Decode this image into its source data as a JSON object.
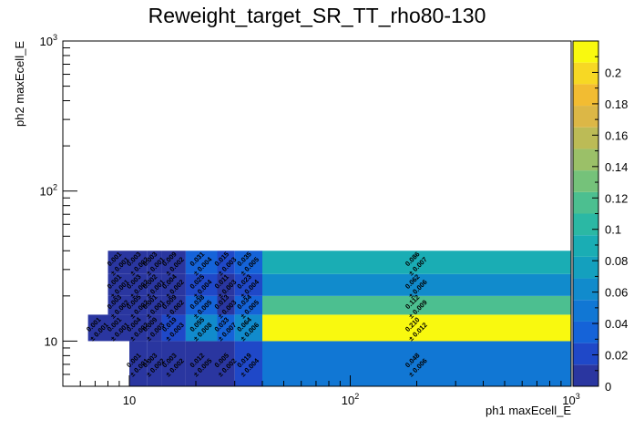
{
  "chart_data": {
    "type": "heatmap",
    "title": "Reweight_target_SR_TT_rho80-130",
    "xlabel": "ph1 maxEcell_E",
    "ylabel": "ph2 maxEcell_E",
    "x_scale": "log",
    "y_scale": "log",
    "xlim": [
      5,
      1000
    ],
    "ylim": [
      5,
      1000
    ],
    "x_tick_labels": [
      "10",
      "10^2",
      "10^3"
    ],
    "y_tick_labels": [
      "10",
      "10^2",
      "10^3"
    ],
    "zlim": [
      0,
      0.22
    ],
    "z_tick_labels": [
      "0",
      "0.02",
      "0.04",
      "0.06",
      "0.08",
      "0.1",
      "0.12",
      "0.14",
      "0.16",
      "0.18",
      "0.2"
    ],
    "x_edges": [
      6.5,
      8,
      10,
      12,
      14,
      18,
      25,
      30,
      40,
      1000
    ],
    "y_edges": [
      5,
      10,
      15,
      20,
      28,
      40,
      1000
    ],
    "cells": [
      {
        "xi": 2,
        "yi": 0,
        "value": 0.001,
        "label": "0.001"
      },
      {
        "xi": 3,
        "yi": 0,
        "value": 0.003,
        "label": "0.003"
      },
      {
        "xi": 4,
        "yi": 0,
        "value": 0.003,
        "label": "0.003"
      },
      {
        "xi": 5,
        "yi": 0,
        "value": 0.012,
        "label": "0.012"
      },
      {
        "xi": 6,
        "yi": 0,
        "value": 0.005,
        "label": "0.005"
      },
      {
        "xi": 7,
        "yi": 0,
        "value": 0.019,
        "label": "0.019"
      },
      {
        "xi": 8,
        "yi": 0,
        "value": 0.048,
        "label": "0.048"
      },
      {
        "xi": 0,
        "yi": 1,
        "value": 0.001,
        "label": "0.001"
      },
      {
        "xi": 1,
        "yi": 1,
        "value": 0.001,
        "label": "0.001"
      },
      {
        "xi": 2,
        "yi": 1,
        "value": 0.004,
        "label": "0.004"
      },
      {
        "xi": 3,
        "yi": 1,
        "value": 0.009,
        "label": "0.009"
      },
      {
        "xi": 4,
        "yi": 1,
        "value": 0.019,
        "label": "0.019"
      },
      {
        "xi": 5,
        "yi": 1,
        "value": 0.055,
        "label": "0.055"
      },
      {
        "xi": 6,
        "yi": 1,
        "value": 0.033,
        "label": "0.033"
      },
      {
        "xi": 7,
        "yi": 1,
        "value": 0.064,
        "label": "0.064"
      },
      {
        "xi": 8,
        "yi": 1,
        "value": 0.21,
        "label": "0.210"
      },
      {
        "xi": 1,
        "yi": 2,
        "value": 0.003,
        "label": "0.003"
      },
      {
        "xi": 2,
        "yi": 2,
        "value": 0.005,
        "label": "0.005"
      },
      {
        "xi": 3,
        "yi": 2,
        "value": 0.001,
        "label": "0.001"
      },
      {
        "xi": 4,
        "yi": 2,
        "value": 0.009,
        "label": "0.009"
      },
      {
        "xi": 5,
        "yi": 2,
        "value": 0.038,
        "label": "0.038"
      },
      {
        "xi": 6,
        "yi": 2,
        "value": 0.013,
        "label": "0.013"
      },
      {
        "xi": 7,
        "yi": 2,
        "value": 0.034,
        "label": "0.034"
      },
      {
        "xi": 8,
        "yi": 2,
        "value": 0.112,
        "label": "0.112"
      },
      {
        "xi": 1,
        "yi": 3,
        "value": 0.001,
        "label": "0.001"
      },
      {
        "xi": 2,
        "yi": 3,
        "value": 0.003,
        "label": "0.003"
      },
      {
        "xi": 3,
        "yi": 3,
        "value": 0.002,
        "label": "0.002"
      },
      {
        "xi": 4,
        "yi": 3,
        "value": 0.004,
        "label": "0.004"
      },
      {
        "xi": 5,
        "yi": 3,
        "value": 0.025,
        "label": "0.025"
      },
      {
        "xi": 6,
        "yi": 3,
        "value": 0.011,
        "label": "0.011"
      },
      {
        "xi": 7,
        "yi": 3,
        "value": 0.023,
        "label": "0.023"
      },
      {
        "xi": 8,
        "yi": 3,
        "value": 0.062,
        "label": "0.062"
      },
      {
        "xi": 1,
        "yi": 4,
        "value": 0.001,
        "label": "0.001"
      },
      {
        "xi": 2,
        "yi": 4,
        "value": 0.003,
        "label": "0.003"
      },
      {
        "xi": 3,
        "yi": 4,
        "value": 0.003,
        "label": "0.003"
      },
      {
        "xi": 4,
        "yi": 4,
        "value": 0.009,
        "label": "0.009"
      },
      {
        "xi": 5,
        "yi": 4,
        "value": 0.031,
        "label": "0.031"
      },
      {
        "xi": 6,
        "yi": 4,
        "value": 0.015,
        "label": "0.015"
      },
      {
        "xi": 7,
        "yi": 4,
        "value": 0.035,
        "label": "0.035"
      },
      {
        "xi": 8,
        "yi": 4,
        "value": 0.086,
        "label": "0.086"
      }
    ],
    "cell_errors": [
      {
        "xi": 2,
        "yi": 0,
        "label": "± 0.001"
      },
      {
        "xi": 3,
        "yi": 0,
        "label": "± 0.002"
      },
      {
        "xi": 4,
        "yi": 0,
        "label": "± 0.002"
      },
      {
        "xi": 5,
        "yi": 0,
        "label": "± 0.005"
      },
      {
        "xi": 6,
        "yi": 0,
        "label": "± 0.002"
      },
      {
        "xi": 7,
        "yi": 0,
        "label": "± 0.004"
      },
      {
        "xi": 8,
        "yi": 0,
        "label": "± 0.006"
      },
      {
        "xi": 0,
        "yi": 1,
        "label": "± 0.001"
      },
      {
        "xi": 1,
        "yi": 1,
        "label": "± 0.001"
      },
      {
        "xi": 2,
        "yi": 1,
        "label": "± 0.002"
      },
      {
        "xi": 3,
        "yi": 1,
        "label": "± 0.003"
      },
      {
        "xi": 4,
        "yi": 1,
        "label": "± 0.003"
      },
      {
        "xi": 5,
        "yi": 1,
        "label": "± 0.008"
      },
      {
        "xi": 6,
        "yi": 1,
        "label": "± 0.007"
      },
      {
        "xi": 7,
        "yi": 1,
        "label": "± 0.006"
      },
      {
        "xi": 8,
        "yi": 1,
        "label": "± 0.012"
      },
      {
        "xi": 1,
        "yi": 2,
        "label": "± 0.002"
      },
      {
        "xi": 2,
        "yi": 2,
        "label": "± 0.002"
      },
      {
        "xi": 3,
        "yi": 2,
        "label": "± 0.001"
      },
      {
        "xi": 4,
        "yi": 2,
        "label": "± 0.002"
      },
      {
        "xi": 5,
        "yi": 2,
        "label": "± 0.005"
      },
      {
        "xi": 6,
        "yi": 2,
        "label": "± 0.003"
      },
      {
        "xi": 7,
        "yi": 2,
        "label": "± 0.005"
      },
      {
        "xi": 8,
        "yi": 2,
        "label": "± 0.009"
      },
      {
        "xi": 1,
        "yi": 3,
        "label": "± 0.001"
      },
      {
        "xi": 2,
        "yi": 3,
        "label": "± 0.002"
      },
      {
        "xi": 3,
        "yi": 3,
        "label": "± 0.001"
      },
      {
        "xi": 4,
        "yi": 3,
        "label": "± 0.002"
      },
      {
        "xi": 5,
        "yi": 3,
        "label": "± 0.004"
      },
      {
        "xi": 6,
        "yi": 3,
        "label": "± 0.003"
      },
      {
        "xi": 7,
        "yi": 3,
        "label": "± 0.004"
      },
      {
        "xi": 8,
        "yi": 3,
        "label": "± 0.006"
      },
      {
        "xi": 1,
        "yi": 4,
        "label": "± 0.001"
      },
      {
        "xi": 2,
        "yi": 4,
        "label": "± 0.002"
      },
      {
        "xi": 3,
        "yi": 4,
        "label": "± 0.001"
      },
      {
        "xi": 4,
        "yi": 4,
        "label": "± 0.002"
      },
      {
        "xi": 5,
        "yi": 4,
        "label": "± 0.004"
      },
      {
        "xi": 6,
        "yi": 4,
        "label": "± 0.003"
      },
      {
        "xi": 7,
        "yi": 4,
        "label": "± 0.005"
      },
      {
        "xi": 8,
        "yi": 4,
        "label": "± 0.007"
      }
    ],
    "colorscale": [
      "#2a36a0",
      "#1f48c8",
      "#1563d8",
      "#1177d4",
      "#118bcc",
      "#14a0be",
      "#1aadb4",
      "#2bb8a4",
      "#4cbf90",
      "#75c27a",
      "#9bc068",
      "#bcbb56",
      "#dcb746",
      "#f2bc32",
      "#f7d824",
      "#f9f90f"
    ],
    "grid": false,
    "colorbar": "right"
  }
}
